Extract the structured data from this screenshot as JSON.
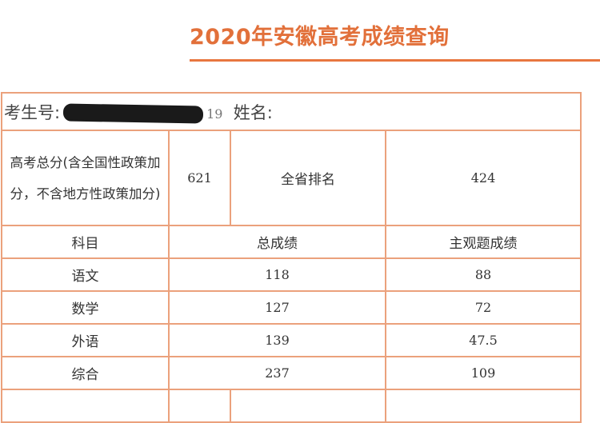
{
  "title": "2020年安徽高考成绩查询",
  "student": {
    "id_label": "考生号:",
    "id_visible_suffix": "19",
    "name_label": "姓名:"
  },
  "summary": {
    "total_label": "高考总分(含全国性政策加分，不含地方性政策加分)",
    "total_score": "621",
    "rank_label": "全省排名",
    "rank_value": "424"
  },
  "headers": [
    "科目",
    "总成绩",
    "主观题成绩"
  ],
  "rows": [
    {
      "subject": "语文",
      "total": "118",
      "subjective": "88"
    },
    {
      "subject": "数学",
      "total": "127",
      "subjective": "72"
    },
    {
      "subject": "外语",
      "total": "139",
      "subjective": "47.5"
    },
    {
      "subject": "综合",
      "total": "237",
      "subjective": "109"
    }
  ],
  "colors": {
    "accent": "#e2703a",
    "border": "#eba17c"
  }
}
